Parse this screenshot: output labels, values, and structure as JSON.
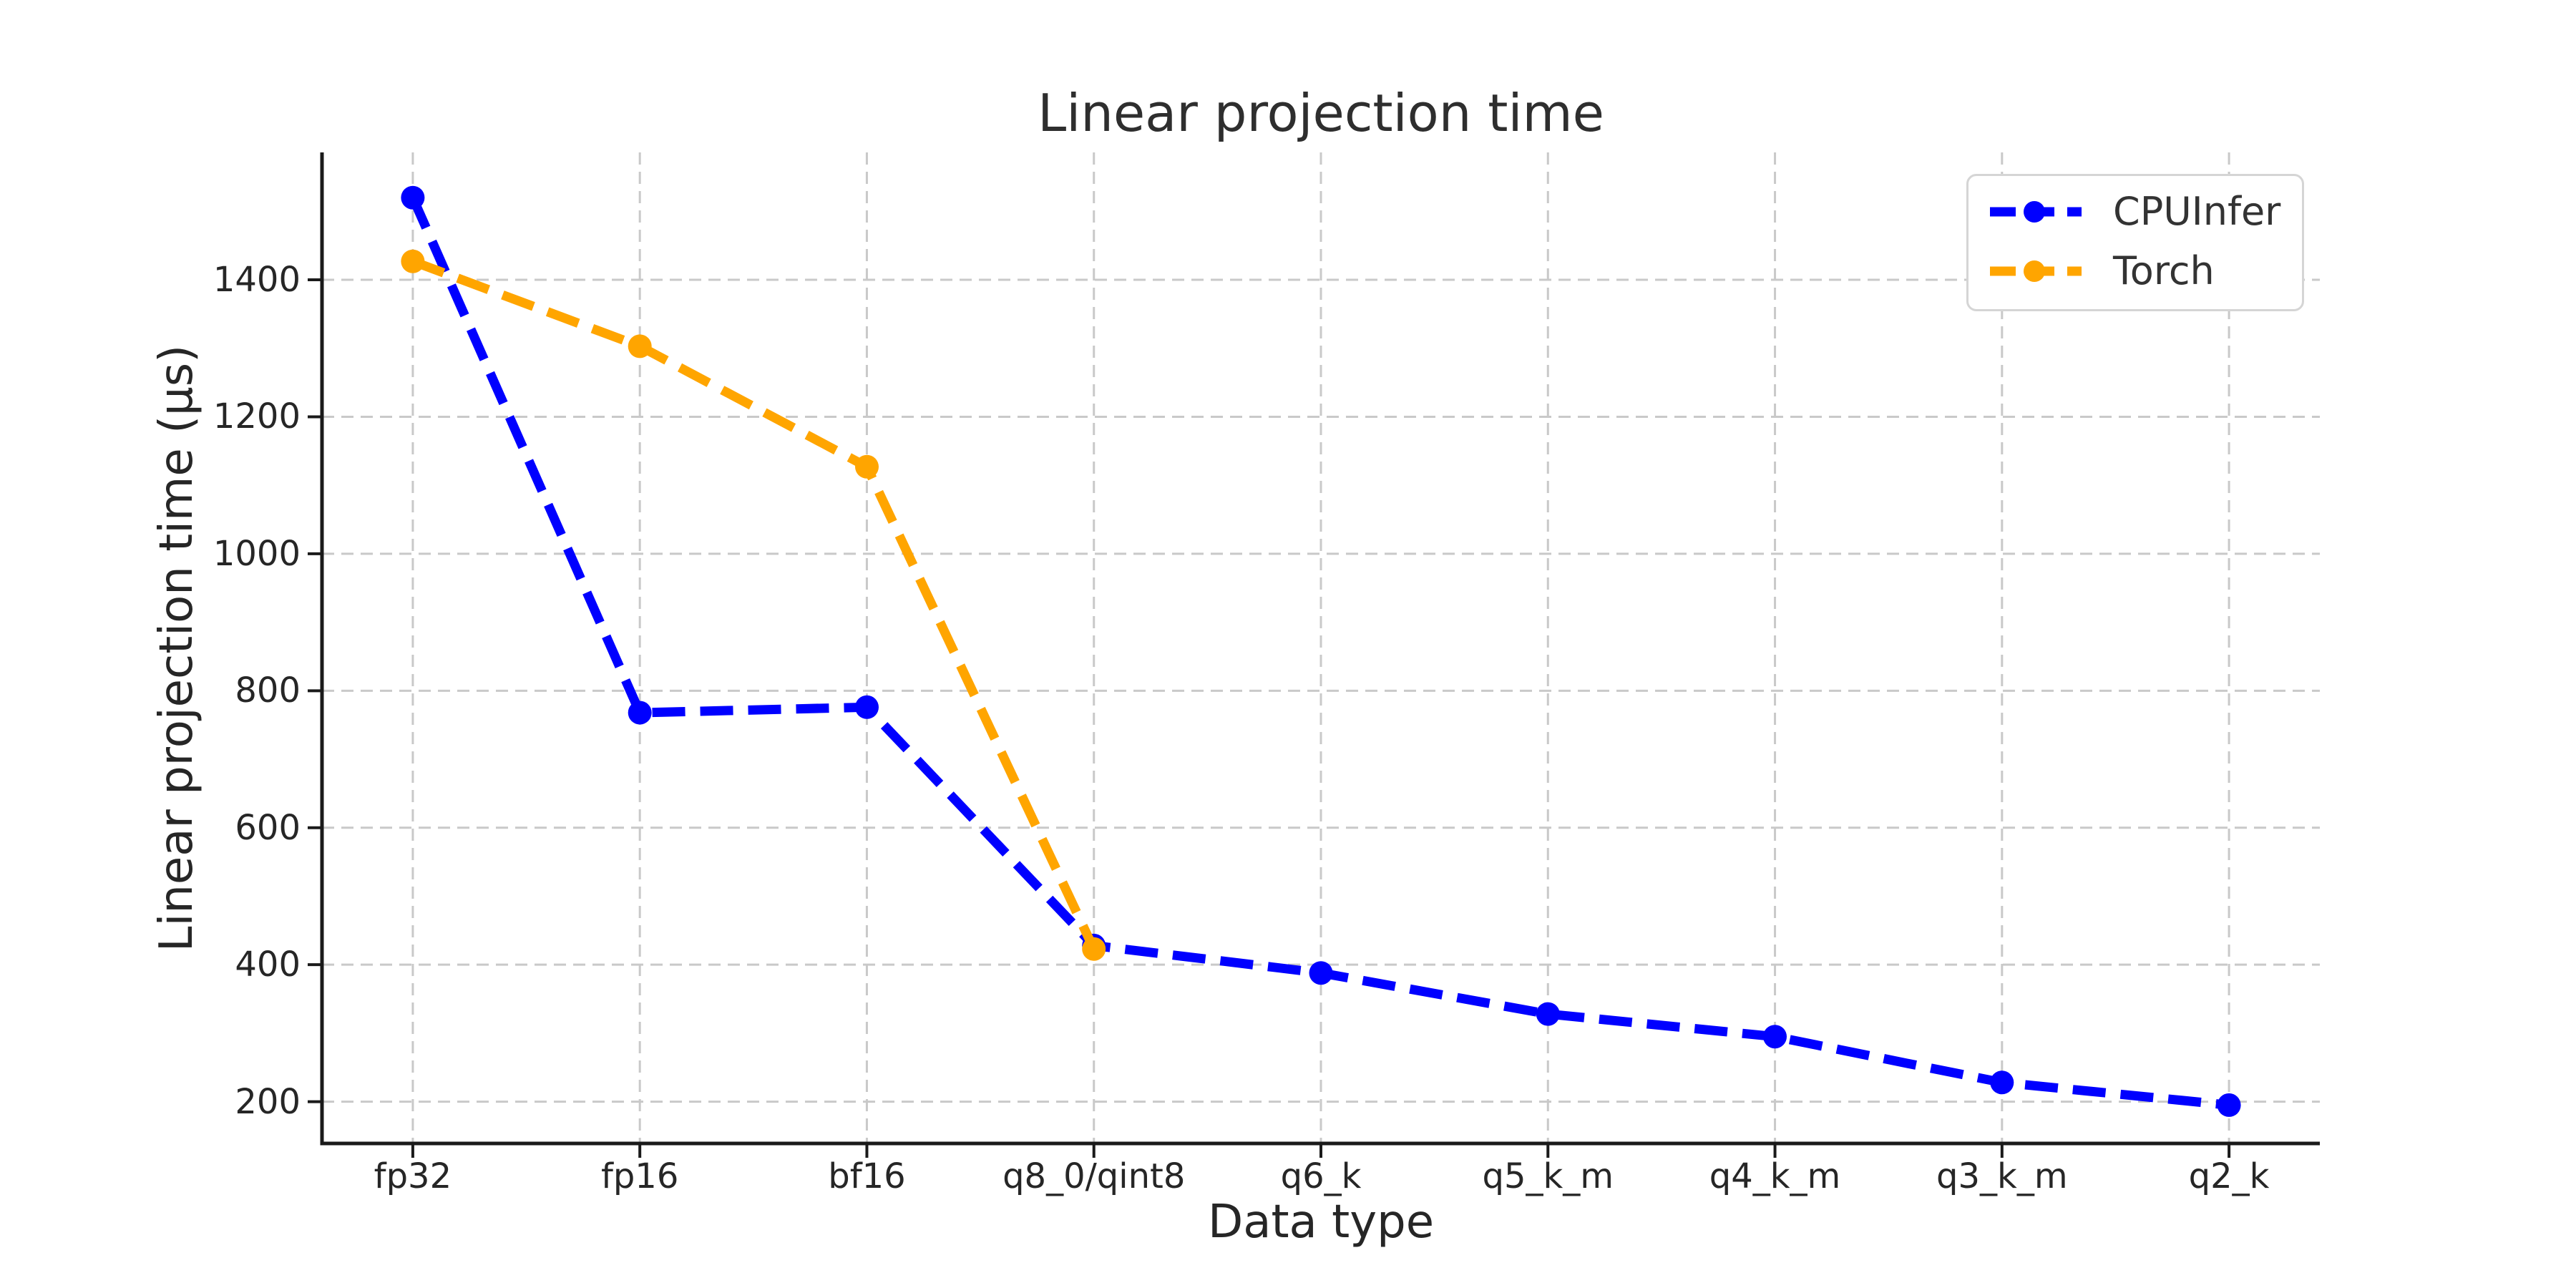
{
  "chart_data": {
    "type": "line",
    "title": "Linear projection time",
    "xlabel": "Data type",
    "ylabel": "Linear projection time (µs)",
    "categories": [
      "fp32",
      "fp16",
      "bf16",
      "q8_0/qint8",
      "q6_k",
      "q5_k_m",
      "q4_k_m",
      "q3_k_m",
      "q2_k"
    ],
    "series": [
      {
        "name": "CPUInfer",
        "color": "#0000ff",
        "values": [
          1520,
          768,
          776,
          428,
          388,
          328,
          295,
          228,
          195
        ]
      },
      {
        "name": "Torch",
        "color": "#ffa500",
        "values": [
          1427,
          1303,
          1127,
          423,
          null,
          null,
          null,
          null,
          null
        ]
      }
    ],
    "yticks": [
      200,
      400,
      600,
      800,
      1000,
      1200,
      1400
    ],
    "ylim": [
      139,
      1586
    ],
    "xlim": [
      -0.4,
      8.4
    ],
    "grid": true,
    "grid_color": "#c9c9c9",
    "line_style": "dashed",
    "marker": "circle",
    "legend_position": "upper right",
    "text_color": "#262626",
    "spine_color": "#1a1a1a"
  }
}
